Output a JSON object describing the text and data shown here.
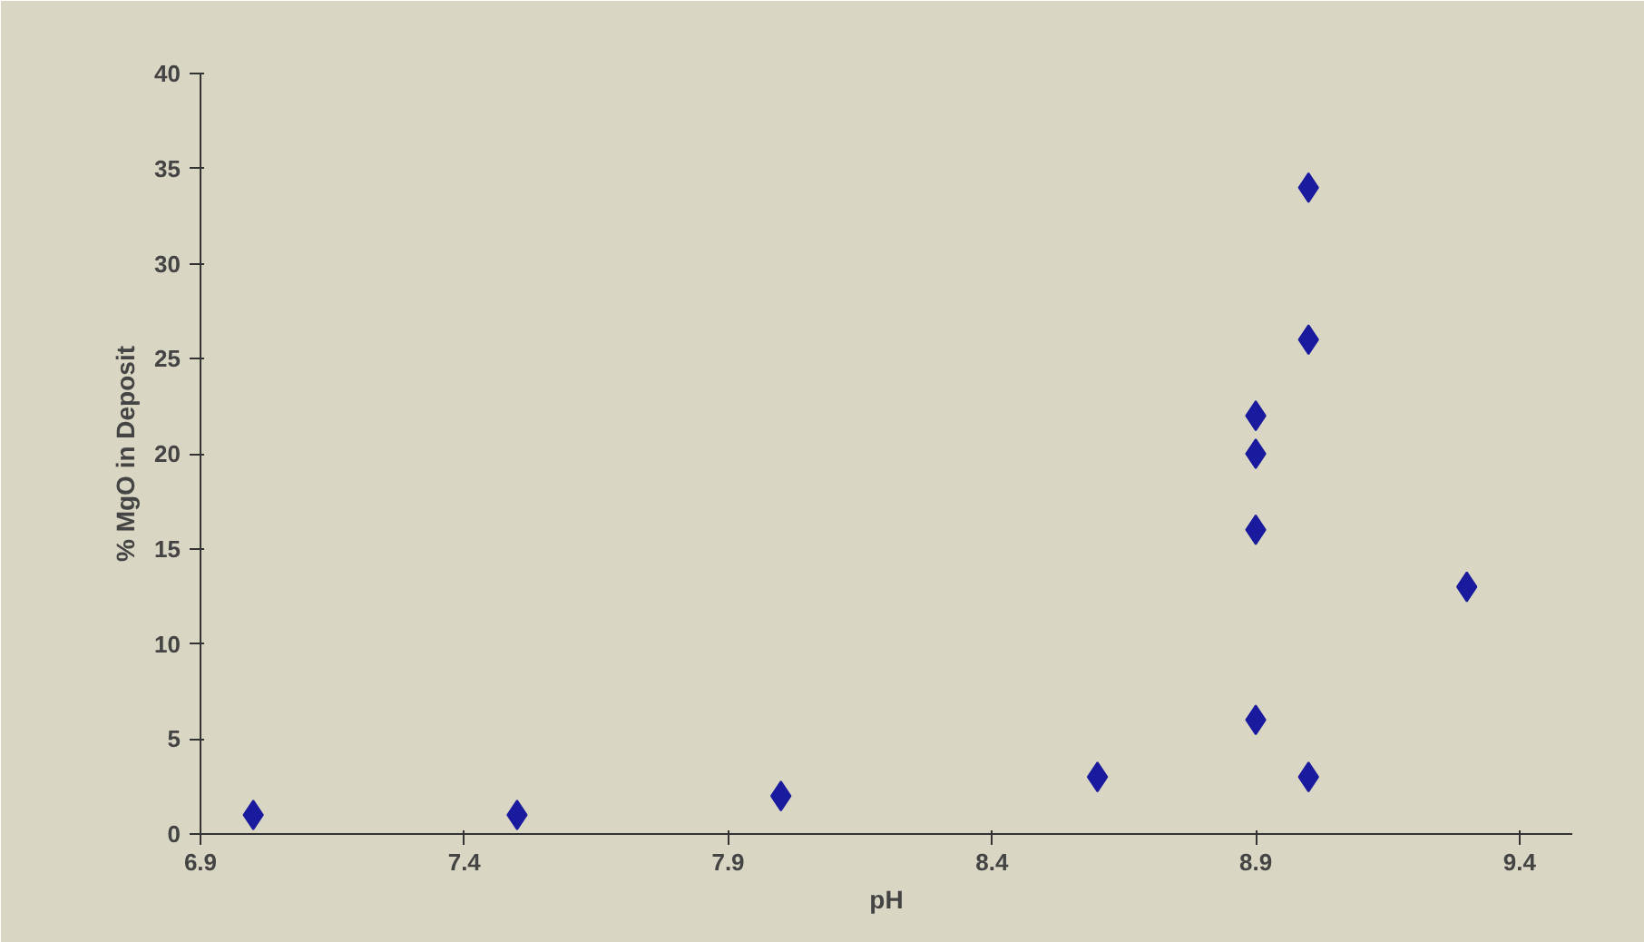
{
  "chart_data": {
    "type": "scatter",
    "xlabel": "pH",
    "ylabel": "% MgO in Deposit",
    "x": [
      7.0,
      7.5,
      8.0,
      8.6,
      8.9,
      9.0,
      8.9,
      8.9,
      8.9,
      9.0,
      9.0,
      9.3
    ],
    "values": [
      1,
      1,
      2,
      3,
      6,
      3,
      16,
      20,
      22,
      26,
      34,
      13
    ],
    "color": "#1a1a9e",
    "marker": "diamond",
    "xlim": [
      6.9,
      9.5
    ],
    "xticks": [
      6.9,
      7.4,
      7.9,
      8.4,
      8.9,
      9.4
    ],
    "ylim": [
      0,
      40
    ],
    "yticks": [
      0,
      5,
      10,
      15,
      20,
      25,
      30,
      35,
      40
    ],
    "grid": false,
    "legend": false
  }
}
